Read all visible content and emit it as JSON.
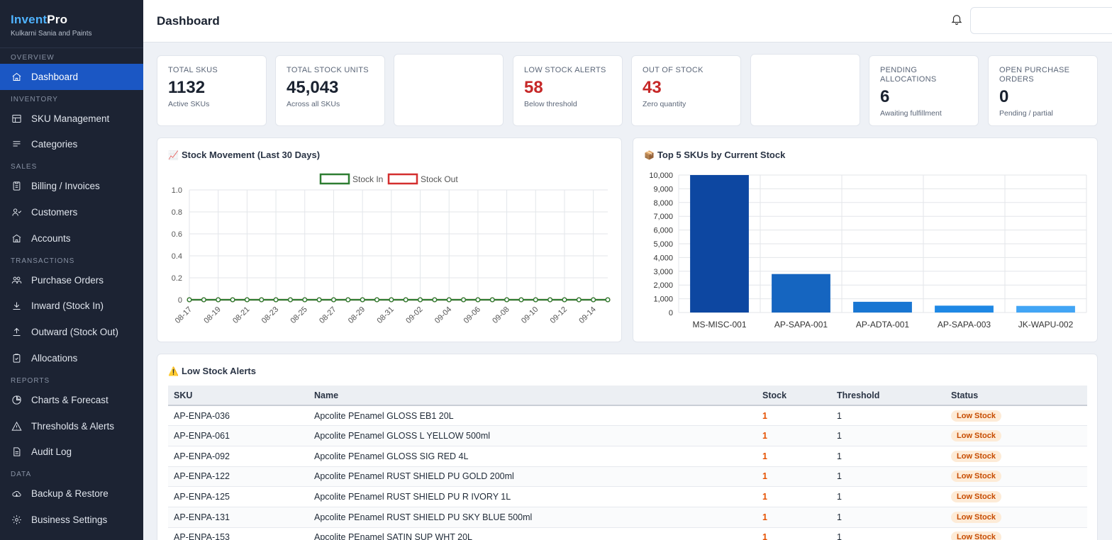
{
  "app": {
    "brand_part1": "Invent",
    "brand_part2": "Pro",
    "company": "Kulkarni Sania and Paints"
  },
  "sidebar": {
    "sections": [
      {
        "label": "Overview",
        "items": [
          {
            "label": "Dashboard",
            "icon": "home-icon",
            "active": true
          }
        ]
      },
      {
        "label": "Inventory",
        "items": [
          {
            "label": "SKU Management",
            "icon": "table-icon"
          },
          {
            "label": "Categories",
            "icon": "list-icon"
          }
        ]
      },
      {
        "label": "Sales",
        "items": [
          {
            "label": "Billing / Invoices",
            "icon": "invoice-icon"
          },
          {
            "label": "Customers",
            "icon": "users-icon"
          },
          {
            "label": "Accounts",
            "icon": "bank-icon"
          }
        ]
      },
      {
        "label": "Transactions",
        "items": [
          {
            "label": "Purchase Orders",
            "icon": "group-icon"
          },
          {
            "label": "Inward (Stock In)",
            "icon": "download-icon"
          },
          {
            "label": "Outward (Stock Out)",
            "icon": "upload-icon"
          },
          {
            "label": "Allocations",
            "icon": "clipboard-check-icon"
          }
        ]
      },
      {
        "label": "Reports",
        "items": [
          {
            "label": "Charts & Forecast",
            "icon": "pie-icon"
          },
          {
            "label": "Thresholds & Alerts",
            "icon": "warning-icon"
          },
          {
            "label": "Audit Log",
            "icon": "document-icon"
          }
        ]
      },
      {
        "label": "Data",
        "items": [
          {
            "label": "Backup & Restore",
            "icon": "cloud-icon"
          },
          {
            "label": "Business Settings",
            "icon": "gear-icon"
          }
        ]
      }
    ]
  },
  "header": {
    "title": "Dashboard"
  },
  "stats": [
    {
      "label": "Total SKUs",
      "value": "1132",
      "sub": "Active SKUs",
      "color": "default"
    },
    {
      "label": "Total Stock Units",
      "value": "45,043",
      "sub": "Across all SKUs",
      "color": "default"
    },
    {
      "label": "Low Stock Alerts",
      "value": "58",
      "sub": "Below threshold",
      "color": "red"
    },
    {
      "label": "Out of Stock",
      "value": "43",
      "sub": "Zero quantity",
      "color": "red"
    },
    {
      "label": "Pending Allocations",
      "value": "6",
      "sub": "Awaiting fulfillment",
      "color": "default"
    },
    {
      "label": "Open Purchase Orders",
      "value": "0",
      "sub": "Pending / partial",
      "color": "default"
    }
  ],
  "movement_panel": {
    "emoji": "📈",
    "title": "Stock Movement (Last 30 Days)"
  },
  "top_panel": {
    "emoji": "📦",
    "title": "Top 5 SKUs by Current Stock"
  },
  "alerts_panel": {
    "emoji": "⚠️",
    "title": "Low Stock Alerts",
    "columns": [
      "SKU",
      "Name",
      "Stock",
      "Threshold",
      "Status"
    ],
    "rows": [
      {
        "sku": "AP-ENPA-036",
        "name": "Apcolite PEnamel GLOSS EB1 20L",
        "stock": "1",
        "threshold": "1",
        "status": "Low Stock"
      },
      {
        "sku": "AP-ENPA-061",
        "name": "Apcolite PEnamel GLOSS L YELLOW 500ml",
        "stock": "1",
        "threshold": "1",
        "status": "Low Stock"
      },
      {
        "sku": "AP-ENPA-092",
        "name": "Apcolite PEnamel GLOSS SIG RED 4L",
        "stock": "1",
        "threshold": "1",
        "status": "Low Stock"
      },
      {
        "sku": "AP-ENPA-122",
        "name": "Apcolite PEnamel RUST SHIELD PU GOLD 200ml",
        "stock": "1",
        "threshold": "1",
        "status": "Low Stock"
      },
      {
        "sku": "AP-ENPA-125",
        "name": "Apcolite PEnamel RUST SHIELD PU R IVORY 1L",
        "stock": "1",
        "threshold": "1",
        "status": "Low Stock"
      },
      {
        "sku": "AP-ENPA-131",
        "name": "Apcolite PEnamel RUST SHIELD PU SKY BLUE 500ml",
        "stock": "1",
        "threshold": "1",
        "status": "Low Stock"
      },
      {
        "sku": "AP-ENPA-153",
        "name": "Apcolite PEnamel SATIN SUP WHT 20L",
        "stock": "1",
        "threshold": "1",
        "status": "Low Stock"
      }
    ]
  },
  "colors": {
    "stock_in": "#2e7d32",
    "stock_out": "#d32f2f",
    "accent": "#1b57c4",
    "sidebar_bg": "#1c2333"
  },
  "chart_data": [
    {
      "type": "line",
      "title": "Stock Movement (Last 30 Days)",
      "x": [
        "08-17",
        "08-18",
        "08-19",
        "08-20",
        "08-21",
        "08-22",
        "08-23",
        "08-24",
        "08-25",
        "08-26",
        "08-27",
        "08-28",
        "08-29",
        "08-30",
        "08-31",
        "09-01",
        "09-02",
        "09-03",
        "09-04",
        "09-05",
        "09-06",
        "09-07",
        "09-08",
        "09-09",
        "09-10",
        "09-11",
        "09-12",
        "09-13",
        "09-14",
        "09-15"
      ],
      "x_tick_labels": [
        "08-17",
        "08-19",
        "08-21",
        "08-23",
        "08-25",
        "08-27",
        "08-29",
        "08-31",
        "09-02",
        "09-04",
        "09-06",
        "09-08",
        "09-10",
        "09-12",
        "09-14"
      ],
      "series": [
        {
          "name": "Stock In",
          "color": "#2e7d32",
          "values": [
            0,
            0,
            0,
            0,
            0,
            0,
            0,
            0,
            0,
            0,
            0,
            0,
            0,
            0,
            0,
            0,
            0,
            0,
            0,
            0,
            0,
            0,
            0,
            0,
            0,
            0,
            0,
            0,
            0,
            0
          ]
        },
        {
          "name": "Stock Out",
          "color": "#d32f2f",
          "values": [
            0,
            0,
            0,
            0,
            0,
            0,
            0,
            0,
            0,
            0,
            0,
            0,
            0,
            0,
            0,
            0,
            0,
            0,
            0,
            0,
            0,
            0,
            0,
            0,
            0,
            0,
            0,
            0,
            0,
            0
          ]
        }
      ],
      "ylim": [
        0,
        1.0
      ],
      "y_ticks": [
        "0",
        "0.2",
        "0.4",
        "0.6",
        "0.8",
        "1.0"
      ],
      "legend": "top",
      "grid": true
    },
    {
      "type": "bar",
      "title": "Top 5 SKUs by Current Stock",
      "categories": [
        "MS-MISC-001",
        "AP-SAPA-001",
        "AP-ADTA-001",
        "AP-SAPA-003",
        "JK-WAPU-002"
      ],
      "values": [
        10000,
        2800,
        780,
        500,
        480
      ],
      "colors": [
        "#0d47a1",
        "#1565c0",
        "#1976d2",
        "#1e88e5",
        "#42a5f5"
      ],
      "ylim": [
        0,
        10000
      ],
      "y_ticks": [
        "0",
        "1,000",
        "2,000",
        "3,000",
        "4,000",
        "5,000",
        "6,000",
        "7,000",
        "8,000",
        "9,000",
        "10,000"
      ],
      "grid": true
    }
  ]
}
